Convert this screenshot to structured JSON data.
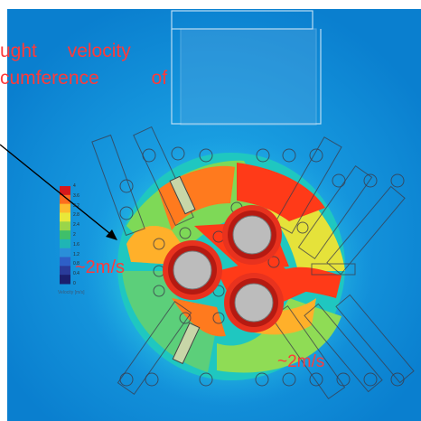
{
  "annotation": {
    "caption_line1": "ught velocity",
    "caption_line2": "cumference of"
  },
  "labels": {
    "label_a": "~2m/s",
    "label_b": "~2m/s"
  },
  "legend": {
    "title": "Velocity [m/s]",
    "ticks": [
      "4",
      "3.6",
      "3.2",
      "2.8",
      "2.4",
      "2",
      "1.6",
      "1.2",
      "0.8",
      "0.4",
      "0"
    ],
    "colors": [
      "#d7191c",
      "#fc6d1f",
      "#fdbb2d",
      "#e8e83a",
      "#9ad54a",
      "#3fbf6a",
      "#1fb5b5",
      "#2a8fd9",
      "#2e5fc7",
      "#2a3b9a",
      "#1b1f6e"
    ]
  },
  "colors": {
    "background": "#0a88d6",
    "field_blue": "#1fa4e6",
    "hot": "#ff2a1a"
  }
}
